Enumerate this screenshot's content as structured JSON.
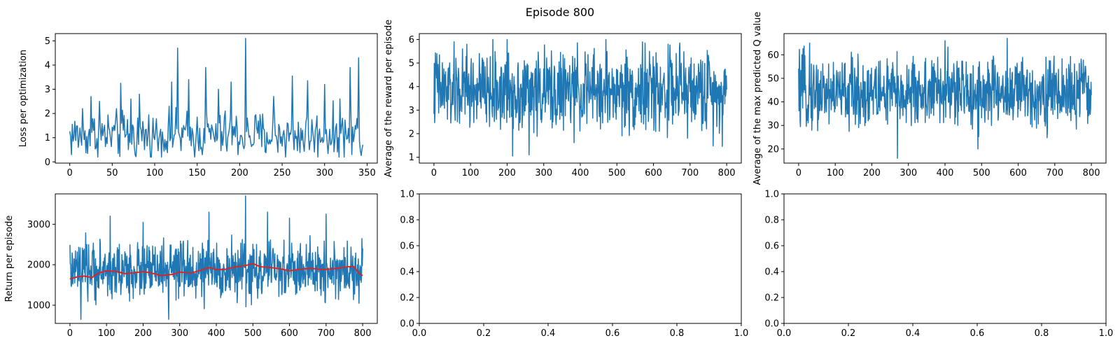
{
  "figure": {
    "suptitle": "Episode 800",
    "colors": {
      "series": "#1f77b4",
      "average": "#d62728",
      "axes": "#000000",
      "background": "#ffffff"
    }
  },
  "chart_data": [
    {
      "id": "loss",
      "type": "line",
      "xlabel": "",
      "ylabel": "Loss per optimization",
      "xlim": [
        -17,
        362
      ],
      "ylim": [
        -0.05,
        5.3
      ],
      "xticks": [
        0,
        50,
        100,
        150,
        200,
        250,
        300,
        350
      ],
      "yticks": [
        0,
        1,
        2,
        3,
        4,
        5
      ],
      "grid": false,
      "series": [
        {
          "x_start": 0,
          "x_end": 345,
          "n_points": 346,
          "base": 1.1,
          "spread": 0.85,
          "min": 0.2,
          "max": 5.1,
          "peaks": [
            [
              15,
              2.2
            ],
            [
              25,
              2.7
            ],
            [
              35,
              2.5
            ],
            [
              60,
              3.25
            ],
            [
              72,
              2.6
            ],
            [
              82,
              2.8
            ],
            [
              120,
              3.3
            ],
            [
              127,
              4.7
            ],
            [
              140,
              3.4
            ],
            [
              160,
              3.9
            ],
            [
              175,
              3.0
            ],
            [
              190,
              3.3
            ],
            [
              207,
              5.1
            ],
            [
              240,
              2.7
            ],
            [
              262,
              3.55
            ],
            [
              280,
              3.35
            ],
            [
              300,
              3.2
            ],
            [
              318,
              2.6
            ],
            [
              330,
              3.9
            ],
            [
              340,
              4.3
            ]
          ],
          "approximate": true
        }
      ]
    },
    {
      "id": "avg-reward",
      "type": "line",
      "xlabel": "",
      "ylabel": "Average of the reward per episode",
      "xlim": [
        -40,
        840
      ],
      "ylim": [
        0.75,
        6.25
      ],
      "xticks": [
        0,
        100,
        200,
        300,
        400,
        500,
        600,
        700,
        800
      ],
      "yticks": [
        1,
        2,
        3,
        4,
        5,
        6
      ],
      "grid": false,
      "series": [
        {
          "x_start": 0,
          "x_end": 800,
          "n_points": 801,
          "base": 3.8,
          "spread": 1.45,
          "min": 1.05,
          "max": 6.0,
          "peaks": [
            [
              8,
              5.4
            ],
            [
              90,
              5.8
            ],
            [
              200,
              6.0
            ],
            [
              215,
              1.05
            ],
            [
              260,
              1.1
            ],
            [
              470,
              6.0
            ],
            [
              570,
              5.9
            ],
            [
              640,
              5.8
            ]
          ],
          "approximate": true
        }
      ]
    },
    {
      "id": "avg-max-q",
      "type": "line",
      "xlabel": "",
      "ylabel": "Average of the max predicted Q value",
      "xlim": [
        -40,
        840
      ],
      "ylim": [
        14,
        69
      ],
      "xticks": [
        0,
        100,
        200,
        300,
        400,
        500,
        600,
        700,
        800
      ],
      "yticks": [
        20,
        30,
        40,
        50,
        60
      ],
      "grid": false,
      "series": [
        {
          "x_start": 0,
          "x_end": 800,
          "n_points": 801,
          "base": 44,
          "spread": 13,
          "min": 16,
          "max": 67,
          "peaks": [
            [
              30,
              65
            ],
            [
              270,
              16
            ],
            [
              400,
              66
            ],
            [
              490,
              20
            ],
            [
              570,
              67
            ]
          ],
          "approximate": true
        }
      ]
    },
    {
      "id": "return",
      "type": "line",
      "xlabel": "",
      "ylabel": "Return per episode",
      "xlim": [
        -40,
        840
      ],
      "ylim": [
        550,
        3750
      ],
      "xticks": [
        0,
        100,
        200,
        300,
        400,
        500,
        600,
        700,
        800
      ],
      "yticks": [
        1000,
        2000,
        3000
      ],
      "grid": false,
      "series": [
        {
          "x_start": 0,
          "x_end": 800,
          "n_points": 801,
          "base": 1850,
          "spread": 600,
          "min": 650,
          "max": 3700,
          "peaks": [
            [
              110,
              3200
            ],
            [
              200,
              3050
            ],
            [
              380,
              3300
            ],
            [
              480,
              3700
            ],
            [
              540,
              3300
            ],
            [
              600,
              3150
            ],
            [
              700,
              3250
            ],
            [
              30,
              650
            ],
            [
              270,
              650
            ]
          ],
          "approximate": true
        },
        {
          "name": "",
          "role": "moving-average",
          "approximate": true,
          "points": [
            [
              0,
              1650
            ],
            [
              20,
              1700
            ],
            [
              40,
              1720
            ],
            [
              60,
              1680
            ],
            [
              80,
              1800
            ],
            [
              100,
              1850
            ],
            [
              130,
              1830
            ],
            [
              150,
              1780
            ],
            [
              175,
              1800
            ],
            [
              200,
              1830
            ],
            [
              220,
              1800
            ],
            [
              250,
              1730
            ],
            [
              280,
              1760
            ],
            [
              300,
              1820
            ],
            [
              330,
              1790
            ],
            [
              360,
              1870
            ],
            [
              380,
              1930
            ],
            [
              400,
              1880
            ],
            [
              420,
              1880
            ],
            [
              450,
              1940
            ],
            [
              480,
              1980
            ],
            [
              500,
              2030
            ],
            [
              520,
              1950
            ],
            [
              550,
              1930
            ],
            [
              580,
              1890
            ],
            [
              600,
              1850
            ],
            [
              630,
              1890
            ],
            [
              660,
              1910
            ],
            [
              690,
              1880
            ],
            [
              720,
              1900
            ],
            [
              760,
              1950
            ],
            [
              775,
              1960
            ],
            [
              790,
              1790
            ],
            [
              800,
              1730
            ]
          ]
        }
      ]
    },
    {
      "id": "empty-1",
      "type": "line",
      "xlim": [
        0,
        1
      ],
      "ylim": [
        0,
        1
      ],
      "xticks": [
        0.0,
        0.2,
        0.4,
        0.6,
        0.8,
        1.0
      ],
      "yticks": [
        0.0,
        0.2,
        0.4,
        0.6,
        0.8,
        1.0
      ],
      "tick_format": 1,
      "series": []
    },
    {
      "id": "empty-2",
      "type": "line",
      "xlim": [
        0,
        1
      ],
      "ylim": [
        0,
        1
      ],
      "xticks": [
        0.0,
        0.2,
        0.4,
        0.6,
        0.8,
        1.0
      ],
      "yticks": [
        0.0,
        0.2,
        0.4,
        0.6,
        0.8,
        1.0
      ],
      "tick_format": 1,
      "series": []
    }
  ]
}
